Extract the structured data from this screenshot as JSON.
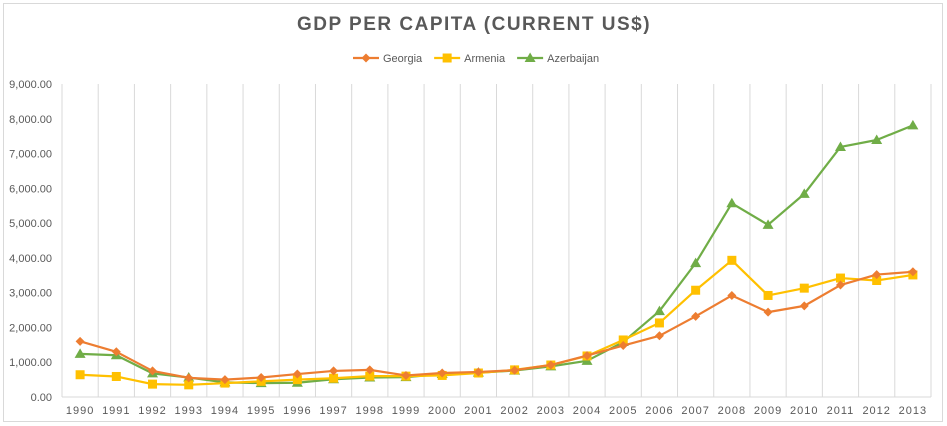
{
  "chart_data": {
    "type": "line",
    "title": "GDP PER CAPITA (CURRENT US$)",
    "xlabel": "",
    "ylabel": "",
    "legend_position": "top",
    "grid": {
      "vertical": true,
      "horizontal": false
    },
    "ylim": [
      0,
      9000
    ],
    "yticks": [
      "0.00",
      "1,000.00",
      "2,000.00",
      "3,000.00",
      "4,000.00",
      "5,000.00",
      "6,000.00",
      "7,000.00",
      "8,000.00",
      "9,000.00"
    ],
    "categories": [
      "1990",
      "1991",
      "1992",
      "1993",
      "1994",
      "1995",
      "1996",
      "1997",
      "1998",
      "1999",
      "2000",
      "2001",
      "2002",
      "2003",
      "2004",
      "2005",
      "2006",
      "2007",
      "2008",
      "2009",
      "2010",
      "2011",
      "2012",
      "2013"
    ],
    "series": [
      {
        "name": "Georgia",
        "color": "#ed7d31",
        "marker": "diamond",
        "values": [
          1600,
          1300,
          750,
          550,
          500,
          560,
          660,
          750,
          780,
          620,
          690,
          720,
          770,
          920,
          1190,
          1480,
          1760,
          2320,
          2920,
          2440,
          2620,
          3220,
          3520,
          3600
        ]
      },
      {
        "name": "Armenia",
        "color": "#ffc000",
        "marker": "square",
        "values": [
          640,
          590,
          370,
          350,
          400,
          450,
          500,
          540,
          600,
          600,
          620,
          690,
          780,
          920,
          1180,
          1640,
          2130,
          3070,
          3930,
          2920,
          3130,
          3420,
          3350,
          3510
        ]
      },
      {
        "name": "Azerbaijan",
        "color": "#70ad47",
        "marker": "triangle",
        "values": [
          1240,
          1200,
          680,
          560,
          420,
          400,
          410,
          510,
          560,
          570,
          660,
          700,
          760,
          880,
          1040,
          1580,
          2470,
          3850,
          5570,
          4950,
          5840,
          7190,
          7390,
          7810
        ]
      }
    ]
  }
}
